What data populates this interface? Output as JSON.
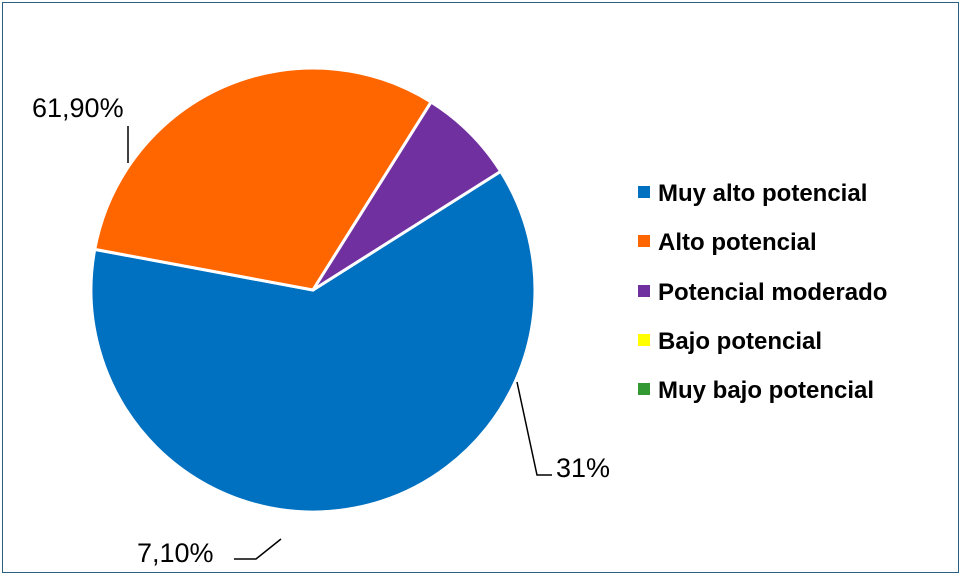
{
  "chart_data": {
    "type": "pie",
    "categories": [
      "Muy alto potencial",
      "Alto potencial",
      "Potencial moderado",
      "Bajo potencial",
      "Muy bajo potencial"
    ],
    "values": [
      61.9,
      31.0,
      7.1,
      0,
      0
    ],
    "data_labels": [
      "61,90%",
      "31%",
      "7,10%",
      "",
      ""
    ],
    "colors": [
      "#0070C0",
      "#FF6600",
      "#7030A0",
      "#FFFF00",
      "#339933"
    ],
    "legend_position": "right",
    "title": ""
  }
}
